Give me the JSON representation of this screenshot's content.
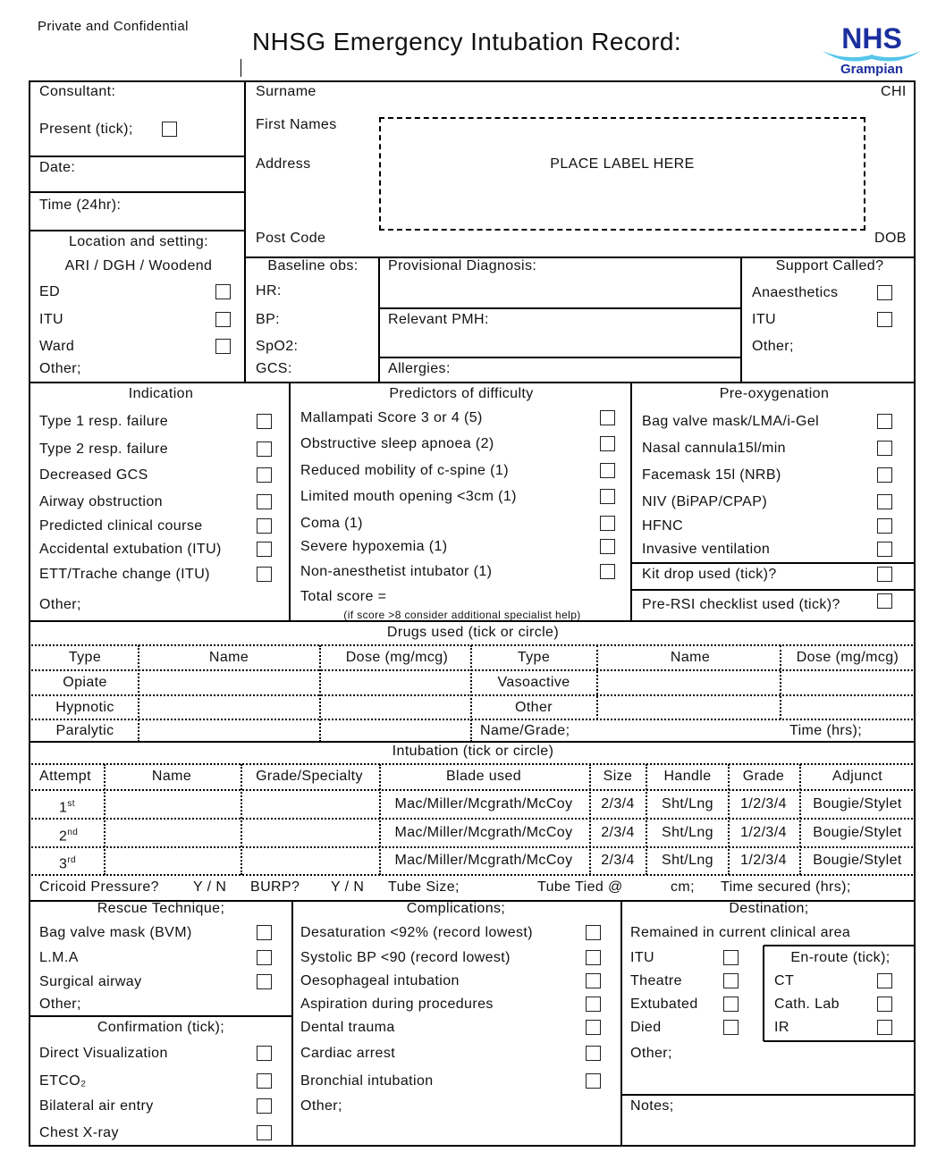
{
  "header": {
    "confidential": "Private and Confidential",
    "title": "NHSG Emergency Intubation Record:",
    "logo_text": "NHS",
    "logo_sub": "Grampian",
    "logo_colors": {
      "primary": "#1b2f9e",
      "wave": "#55c6ea"
    }
  },
  "consultant": {
    "consultant": "Consultant:",
    "present": "Present (tick);",
    "date": "Date:",
    "time": "Time (24hr):"
  },
  "patient": {
    "surname": "Surname",
    "chi": "CHI",
    "first_names": "First Names",
    "address": "Address",
    "label": "PLACE LABEL HERE",
    "post_code": "Post Code",
    "dob": "DOB"
  },
  "location": {
    "title": "Location and setting:",
    "sites": "ARI / DGH / Woodend",
    "options": [
      "ED",
      "ITU",
      "Ward"
    ],
    "other": "Other;"
  },
  "baseline": {
    "title": "Baseline obs:",
    "items": [
      "HR:",
      "BP:",
      "SpO2:",
      "GCS:"
    ]
  },
  "diagnosis": {
    "provisional": "Provisional Diagnosis:",
    "pmh": "Relevant PMH:",
    "allergies": "Allergies:"
  },
  "support": {
    "title": "Support Called?",
    "options": [
      "Anaesthetics",
      "ITU"
    ],
    "other": "Other;"
  },
  "indication": {
    "title": "Indication",
    "items": [
      "Type 1 resp. failure",
      "Type 2 resp. failure",
      "Decreased GCS",
      "Airway obstruction",
      "Predicted clinical course",
      "Accidental extubation (ITU)",
      "ETT/Trache change (ITU)"
    ],
    "other": "Other;"
  },
  "predictors": {
    "title": "Predictors of difficulty",
    "items": [
      "Mallampati Score 3 or 4 (5)",
      "Obstructive sleep apnoea (2)",
      "Reduced mobility of c-spine (1)",
      "Limited mouth opening <3cm (1)",
      "Coma (1)",
      "Severe hypoxemia (1)",
      "Non-anesthetist intubator (1)"
    ],
    "total": "Total score =",
    "note": "(if score >8 consider additional specialist help)"
  },
  "preox": {
    "title": "Pre-oxygenation",
    "items": [
      "Bag valve mask/LMA/i-Gel",
      "Nasal cannula15l/min",
      "Facemask 15l (NRB)",
      "NIV (BiPAP/CPAP)",
      "HFNC",
      "Invasive ventilation"
    ],
    "kit_drop": "Kit drop used (tick)?",
    "pre_rsi": "Pre-RSI checklist used (tick)?"
  },
  "drugs": {
    "title": "Drugs used (tick or circle)",
    "headers": [
      "Type",
      "Name",
      "Dose (mg/mcg)",
      "Type",
      "Name",
      "Dose (mg/mcg)"
    ],
    "left_types": [
      "Opiate",
      "Hypnotic",
      "Paralytic"
    ],
    "right_types": [
      "Vasoactive",
      "Other"
    ],
    "name_grade": "Name/Grade;",
    "time": "Time (hrs);"
  },
  "intubation": {
    "title": "Intubation (tick or circle)",
    "headers": [
      "Attempt",
      "Name",
      "Grade/Specialty",
      "Blade used",
      "Size",
      "Handle",
      "Grade",
      "Adjunct"
    ],
    "attempts": [
      {
        "n": "1",
        "sup": "st"
      },
      {
        "n": "2",
        "sup": "nd"
      },
      {
        "n": "3",
        "sup": "rd"
      }
    ],
    "blade": "Mac/Miller/Mcgrath/McCoy",
    "size": "2/3/4",
    "handle": "Sht/Lng",
    "grade": "1/2/3/4",
    "adjunct": "Bougie/Stylet",
    "cricoid": "Cricoid Pressure?",
    "yn": "Y / N",
    "burp": "BURP?",
    "tube_size": "Tube Size;",
    "tube_tied": "Tube Tied @",
    "cm": "cm;",
    "time_secured": "Time secured (hrs);"
  },
  "rescue": {
    "title": "Rescue Technique;",
    "items": [
      "Bag valve mask (BVM)",
      "L.M.A",
      "Surgical airway"
    ],
    "other": "Other;"
  },
  "confirmation": {
    "title": "Confirmation (tick);",
    "items": [
      "Direct Visualization",
      "ETCO₂",
      "Bilateral air entry",
      "Chest X-ray"
    ]
  },
  "complications": {
    "title": "Complications;",
    "items": [
      "Desaturation <92% (record lowest)",
      "Systolic BP <90 (record lowest)",
      "Oesophageal intubation",
      "Aspiration during procedures",
      "Dental trauma",
      "Cardiac arrest",
      "Bronchial intubation"
    ],
    "other": "Other;"
  },
  "destination": {
    "title": "Destination;",
    "remained": "Remained in current clinical area",
    "options": [
      "ITU",
      "Theatre",
      "Extubated",
      "Died"
    ],
    "other": "Other;",
    "enroute_title": "En-route (tick);",
    "enroute": [
      "CT",
      "Cath. Lab",
      "IR"
    ],
    "notes": "Notes;"
  }
}
